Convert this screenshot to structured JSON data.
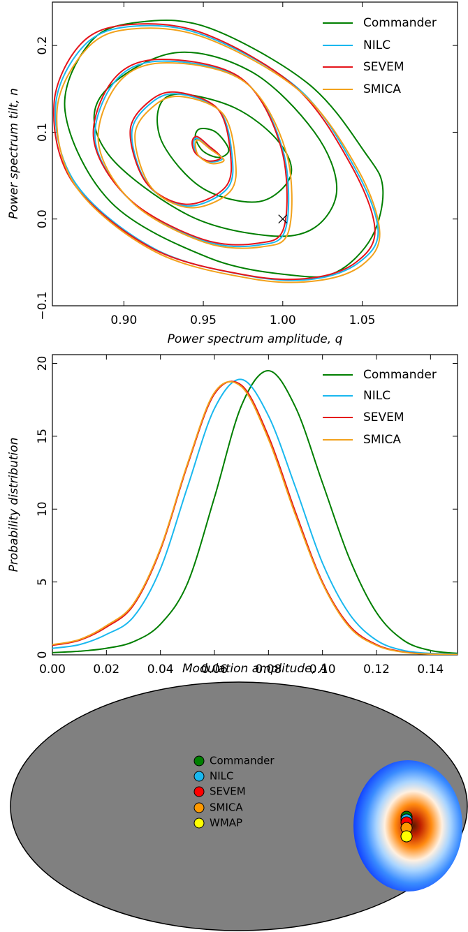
{
  "chart_data": [
    {
      "type": "contour",
      "xlabel": "Power spectrum amplitude, q",
      "ylabel": "Power spectrum tilt, n",
      "xlim": [
        0.855,
        1.11
      ],
      "ylim": [
        -0.1,
        0.25
      ],
      "xticks": [
        {
          "value": 0.9,
          "label": "0.90"
        },
        {
          "value": 0.95,
          "label": "0.95"
        },
        {
          "value": 1.0,
          "label": "1.00"
        },
        {
          "value": 1.05,
          "label": "1.05"
        }
      ],
      "yticks": [
        {
          "value": -0.1,
          "label": "−0.1"
        },
        {
          "value": 0.0,
          "label": "0.0"
        },
        0.1,
        0.2
      ],
      "reference_point": {
        "x": 1.0,
        "y": 0.0
      },
      "series": [
        {
          "name": "Commander",
          "color": "#007f00",
          "contours": [
            {
              "x": [
                0.91,
                0.954,
                1.016,
                1.052,
                1.063,
                1.056,
                1.034,
                1.007,
                0.954,
                0.892,
                0.863,
                0.879
              ],
              "y": [
                0.227,
                0.22,
                0.156,
                0.076,
                0.035,
                -0.021,
                -0.061,
                -0.065,
                -0.045,
                0.019,
                0.124,
                0.204
              ]
            },
            {
              "x": [
                0.93,
                0.98,
                1.02,
                1.034,
                1.02,
                0.99,
                0.94,
                0.89,
                0.885
              ],
              "y": [
                0.191,
                0.17,
                0.1,
                0.035,
                -0.01,
                -0.019,
                0.005,
                0.075,
                0.14
              ]
            },
            {
              "x": [
                0.935,
                0.97,
                0.997,
                1.005,
                0.985,
                0.95,
                0.925,
                0.922
              ],
              "y": [
                0.144,
                0.128,
                0.09,
                0.05,
                0.02,
                0.035,
                0.085,
                0.128
              ]
            },
            {
              "x": [
                0.948,
                0.958,
                0.966,
                0.96,
                0.95,
                0.945
              ],
              "y": [
                0.104,
                0.1,
                0.08,
                0.071,
                0.078,
                0.094
              ]
            }
          ]
        },
        {
          "name": "NILC",
          "color": "#1ab8ef",
          "contours": [
            {
              "x": [
                0.905,
                0.95,
                1.01,
                1.045,
                1.06,
                1.048,
                1.02,
                0.98,
                0.92,
                0.87,
                0.857,
                0.875
              ],
              "y": [
                0.222,
                0.212,
                0.15,
                0.06,
                -0.013,
                -0.05,
                -0.069,
                -0.066,
                -0.035,
                0.04,
                0.13,
                0.2
              ]
            },
            {
              "x": [
                0.925,
                0.975,
                1.0,
                1.002,
                0.985,
                0.95,
                0.905,
                0.882,
                0.895
              ],
              "y": [
                0.182,
                0.16,
                0.08,
                -0.01,
                -0.03,
                -0.025,
                0.02,
                0.09,
                0.16
              ]
            },
            {
              "x": [
                0.935,
                0.96,
                0.968,
                0.965,
                0.94,
                0.915,
                0.905,
                0.918
              ],
              "y": [
                0.144,
                0.125,
                0.075,
                0.035,
                0.015,
                0.04,
                0.1,
                0.135
              ]
            },
            {
              "x": [
                0.946,
                0.953,
                0.962,
                0.954,
                0.946,
                0.944
              ],
              "y": [
                0.093,
                0.083,
                0.07,
                0.066,
                0.075,
                0.088
              ]
            }
          ]
        },
        {
          "name": "SEVEM",
          "color": "#e5141b",
          "contours": [
            {
              "x": [
                0.903,
                0.95,
                1.008,
                1.043,
                1.058,
                1.046,
                1.018,
                0.978,
                0.918,
                0.868,
                0.856,
                0.873
              ],
              "y": [
                0.224,
                0.214,
                0.152,
                0.062,
                -0.012,
                -0.05,
                -0.068,
                -0.065,
                -0.034,
                0.042,
                0.132,
                0.202
              ]
            },
            {
              "x": [
                0.924,
                0.974,
                0.999,
                1.001,
                0.984,
                0.949,
                0.904,
                0.881,
                0.894
              ],
              "y": [
                0.184,
                0.162,
                0.082,
                -0.008,
                -0.028,
                -0.023,
                0.022,
                0.092,
                0.162
              ]
            },
            {
              "x": [
                0.934,
                0.959,
                0.967,
                0.964,
                0.939,
                0.914,
                0.904,
                0.917
              ],
              "y": [
                0.146,
                0.127,
                0.077,
                0.037,
                0.017,
                0.042,
                0.102,
                0.137
              ]
            },
            {
              "x": [
                0.946,
                0.953,
                0.961,
                0.953,
                0.945,
                0.943
              ],
              "y": [
                0.095,
                0.085,
                0.071,
                0.067,
                0.076,
                0.089
              ]
            }
          ]
        },
        {
          "name": "SMICA",
          "color": "#f2a21c",
          "contours": [
            {
              "x": [
                0.905,
                0.951,
                1.011,
                1.047,
                1.061,
                1.05,
                1.022,
                0.981,
                0.92,
                0.87,
                0.858,
                0.877
              ],
              "y": [
                0.219,
                0.209,
                0.147,
                0.058,
                -0.015,
                -0.053,
                -0.071,
                -0.069,
                -0.038,
                0.037,
                0.127,
                0.197
              ]
            },
            {
              "x": [
                0.927,
                0.976,
                1.002,
                1.004,
                0.987,
                0.951,
                0.906,
                0.884,
                0.897
              ],
              "y": [
                0.18,
                0.158,
                0.078,
                -0.012,
                -0.032,
                -0.027,
                0.018,
                0.088,
                0.158
              ]
            },
            {
              "x": [
                0.937,
                0.962,
                0.97,
                0.967,
                0.942,
                0.917,
                0.907,
                0.92
              ],
              "y": [
                0.141,
                0.122,
                0.072,
                0.032,
                0.013,
                0.037,
                0.097,
                0.132
              ]
            },
            {
              "x": [
                0.947,
                0.954,
                0.963,
                0.955,
                0.947,
                0.945
              ],
              "y": [
                0.091,
                0.081,
                0.068,
                0.064,
                0.073,
                0.086
              ]
            }
          ]
        }
      ]
    },
    {
      "type": "line",
      "xlabel": "Modulation amplitude, A",
      "ylabel": "Probability distribution",
      "xlim": [
        0,
        0.15
      ],
      "ylim": [
        0,
        20.6
      ],
      "xticks": [
        {
          "value": 0,
          "label": "0.00"
        },
        {
          "value": 0.02,
          "label": "0.02"
        },
        {
          "value": 0.04,
          "label": "0.04"
        },
        {
          "value": 0.06,
          "label": "0.06"
        },
        {
          "value": 0.08,
          "label": "0.08"
        },
        {
          "value": 0.1,
          "label": "0.10"
        },
        {
          "value": 0.12,
          "label": "0.12"
        },
        {
          "value": 0.14,
          "label": "0.14"
        }
      ],
      "yticks": [
        0,
        5,
        10,
        15,
        20
      ],
      "x": [
        0,
        0.01,
        0.02,
        0.03,
        0.04,
        0.05,
        0.06,
        0.07,
        0.08,
        0.09,
        0.1,
        0.11,
        0.12,
        0.13,
        0.14,
        0.15
      ],
      "series": [
        {
          "name": "Commander",
          "color": "#007f00",
          "values": [
            0.15,
            0.25,
            0.45,
            0.9,
            2.1,
            4.9,
            10.8,
            17.1,
            19.5,
            17.0,
            11.8,
            6.6,
            2.9,
            1.0,
            0.3,
            0.1
          ]
        },
        {
          "name": "NILC",
          "color": "#1ab8ef",
          "values": [
            0.45,
            0.7,
            1.4,
            2.6,
            5.9,
            11.5,
            16.9,
            18.9,
            16.4,
            11.5,
            6.3,
            2.8,
            1.0,
            0.3,
            0.1,
            0.05
          ]
        },
        {
          "name": "SEVEM",
          "color": "#e5141b",
          "values": [
            0.65,
            1.0,
            1.9,
            3.4,
            7.2,
            13.0,
            17.9,
            18.5,
            15.0,
            9.8,
            5.0,
            2.0,
            0.7,
            0.2,
            0.05,
            0.02
          ]
        },
        {
          "name": "SMICA",
          "color": "#f2a21c",
          "values": [
            0.7,
            1.05,
            2.0,
            3.5,
            7.3,
            13.1,
            18.0,
            18.4,
            14.8,
            9.6,
            4.9,
            1.9,
            0.65,
            0.18,
            0.05,
            0.02
          ]
        }
      ]
    },
    {
      "type": "skymap",
      "legend": [
        {
          "name": "Commander",
          "color": "#007f00"
        },
        {
          "name": "NILC",
          "color": "#1ab8ef"
        },
        {
          "name": "SEVEM",
          "color": "#ff0000"
        },
        {
          "name": "SMICA",
          "color": "#ff9900"
        },
        {
          "name": "WMAP",
          "color": "#ffff00"
        }
      ]
    }
  ]
}
